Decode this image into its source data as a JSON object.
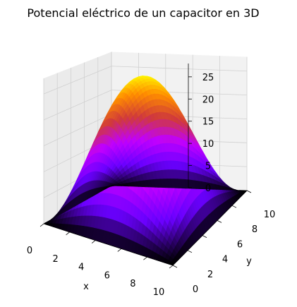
{
  "chart_data": {
    "type": "surface",
    "title": "Potencial eléctrico de un capacitor en 3D",
    "xlabel": "x",
    "ylabel": "y",
    "zlabel": "",
    "xlim": [
      0,
      10
    ],
    "ylim": [
      0,
      10
    ],
    "zlim": [
      0,
      28
    ],
    "xticks": [
      "0",
      "2",
      "4",
      "6",
      "8",
      "10"
    ],
    "yticks": [
      "0",
      "2",
      "4",
      "6",
      "8",
      "10"
    ],
    "zticks": [
      "0",
      "5",
      "10",
      "15",
      "20",
      "25"
    ],
    "z_function": "z = 28 * sin(pi*x/10) * sin(pi*y/10)",
    "peak": {
      "x": 5,
      "y": 5,
      "z": 28
    },
    "colormap": "gnuplot",
    "colormap_colors": [
      "#000000",
      "#6a00ff",
      "#c000ff",
      "#d03a3a",
      "#ff8c00",
      "#ffff00"
    ],
    "grid": true,
    "pane_color": "#f2f2f2",
    "grid_color": "#d0d0d0"
  }
}
